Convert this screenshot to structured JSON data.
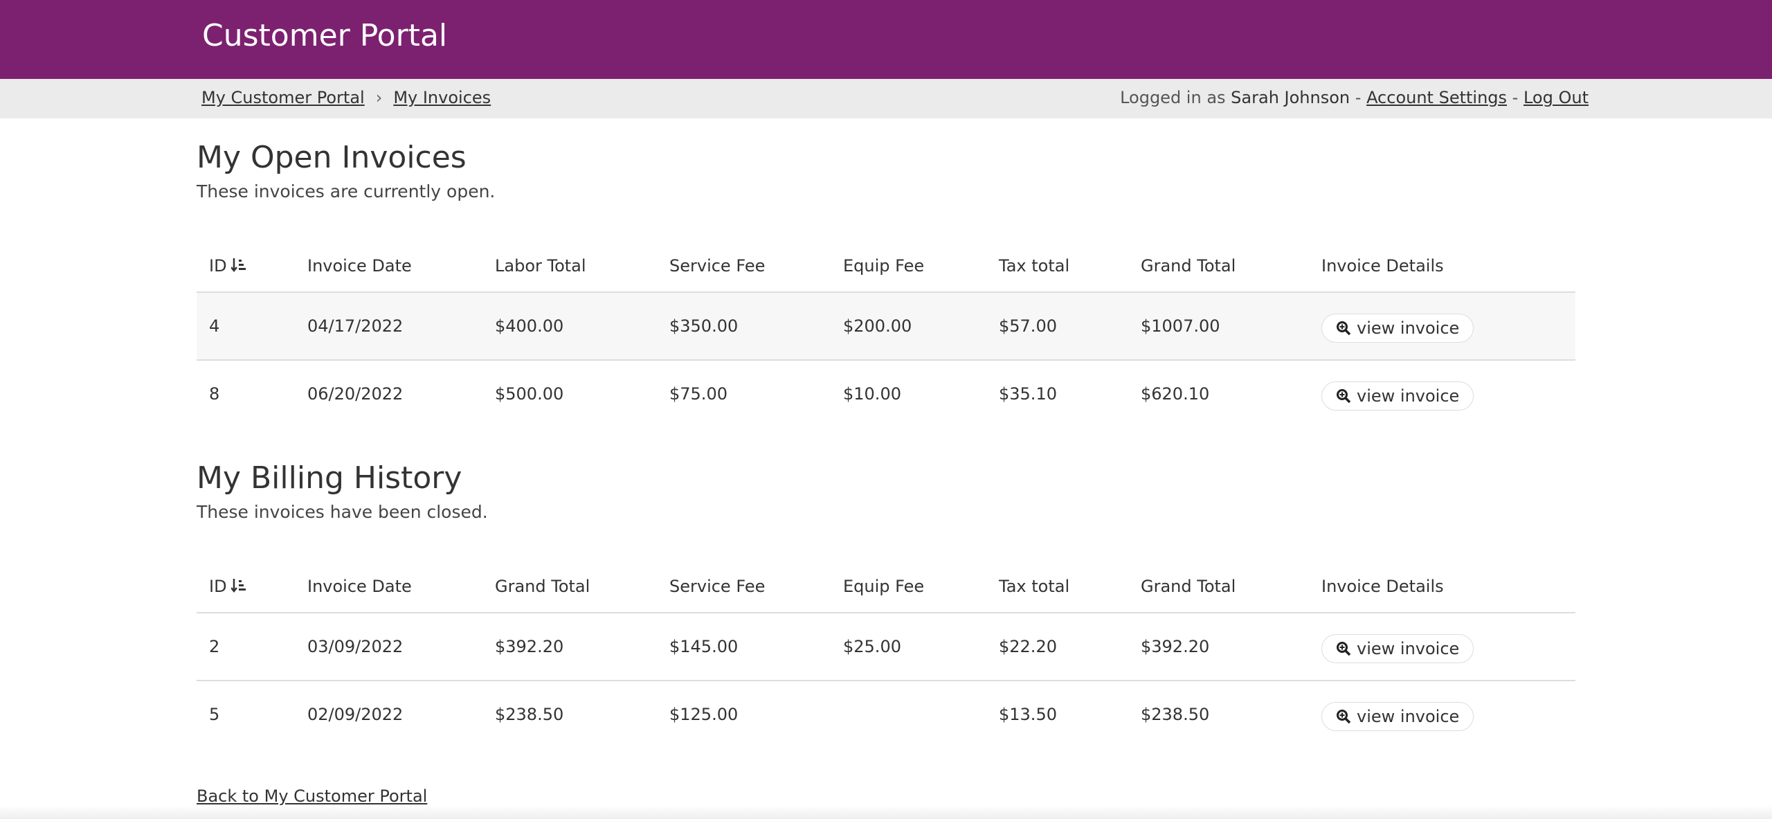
{
  "header": {
    "title": "Customer Portal"
  },
  "breadcrumb": [
    "My Customer Portal",
    "My Invoices"
  ],
  "user": {
    "prefix": "Logged in as",
    "name": "Sarah Johnson",
    "separator": "-",
    "links": [
      "Account Settings",
      "Log Out"
    ]
  },
  "sections": [
    {
      "title": "My Open Invoices",
      "subtitle": "These invoices are currently open.",
      "columns": [
        "ID",
        "Invoice Date",
        "Labor Total",
        "Service Fee",
        "Equip Fee",
        "Tax total",
        "Grand Total",
        "Invoice Details"
      ],
      "rows": [
        [
          "4",
          "04/17/2022",
          "$400.00",
          "$350.00",
          "$200.00",
          "$57.00",
          "$1007.00",
          "view invoice"
        ],
        [
          "8",
          "06/20/2022",
          "$500.00",
          "$75.00",
          "$10.00",
          "$35.10",
          "$620.10",
          "view invoice"
        ]
      ]
    },
    {
      "title": "My Billing History",
      "subtitle": "These invoices have been closed.",
      "columns": [
        "ID",
        "Invoice Date",
        "Grand Total",
        "Service Fee",
        "Equip Fee",
        "Tax total",
        "Grand Total",
        "Invoice Details"
      ],
      "rows": [
        [
          "2",
          "03/09/2022",
          "$392.20",
          "$145.00",
          "$25.00",
          "$22.20",
          "$392.20",
          "view invoice"
        ],
        [
          "5",
          "02/09/2022",
          "$238.50",
          "$125.00",
          null,
          "$13.50",
          "$238.50",
          "view invoice"
        ]
      ]
    }
  ],
  "back_link": "Back to My Customer Portal"
}
